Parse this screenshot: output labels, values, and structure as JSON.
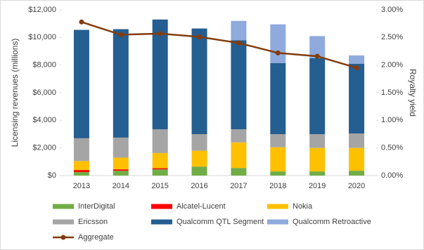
{
  "chart_data": {
    "type": "bar",
    "stacked": true,
    "categories": [
      "2013",
      "2014",
      "2015",
      "2016",
      "2017",
      "2018",
      "2019",
      "2020"
    ],
    "y_label": "Licensing revenues (millions)",
    "y2_label": "Royalty yield",
    "ylim": [
      0,
      12000
    ],
    "yticks": [
      {
        "value": 0,
        "label": "$0"
      },
      {
        "value": 2000,
        "label": "$2,000"
      },
      {
        "value": 4000,
        "label": "$4,000"
      },
      {
        "value": 6000,
        "label": "$6,000"
      },
      {
        "value": 8000,
        "label": "$8,000"
      },
      {
        "value": 10000,
        "label": "$10,000"
      },
      {
        "value": 12000,
        "label": "$12,000"
      }
    ],
    "y2lim": [
      0,
      3
    ],
    "y2ticks": [
      {
        "value": 0,
        "label": "0.00%"
      },
      {
        "value": 0.5,
        "label": "0.50%"
      },
      {
        "value": 1,
        "label": "1.00%"
      },
      {
        "value": 1.5,
        "label": "1.50%"
      },
      {
        "value": 2,
        "label": "2.00%"
      },
      {
        "value": 2.5,
        "label": "2.50%"
      },
      {
        "value": 3,
        "label": "3.00%"
      }
    ],
    "legend": "bottom",
    "series": [
      {
        "name": "InterDigital",
        "color": "#70ad47",
        "values": [
          250,
          350,
          450,
          650,
          550,
          300,
          300,
          350
        ]
      },
      {
        "name": "Alcatel-Lucent",
        "color": "#ff0000",
        "values": [
          150,
          100,
          80,
          0,
          0,
          0,
          0,
          0
        ]
      },
      {
        "name": "Nokia",
        "color": "#ffc000",
        "values": [
          650,
          850,
          1100,
          1150,
          1850,
          1750,
          1700,
          1650
        ]
      },
      {
        "name": "Ericsson",
        "color": "#a5a5a5",
        "values": [
          1650,
          1450,
          1720,
          1200,
          950,
          950,
          1000,
          1050
        ]
      },
      {
        "name": "Qualcomm QTL Segment",
        "color": "#255e91",
        "values": [
          7850,
          7850,
          7950,
          7650,
          6450,
          5150,
          5500,
          5050
        ]
      },
      {
        "name": "Qualcomm Retroactive",
        "color": "#8faadc",
        "values": [
          0,
          0,
          0,
          0,
          1400,
          2800,
          1600,
          600
        ]
      },
      {
        "name": "Aggregate",
        "color": "#843c0c",
        "type": "line",
        "axis": "y2",
        "values": [
          2.78,
          2.55,
          2.57,
          2.51,
          2.4,
          2.22,
          2.16,
          1.95
        ]
      }
    ]
  }
}
